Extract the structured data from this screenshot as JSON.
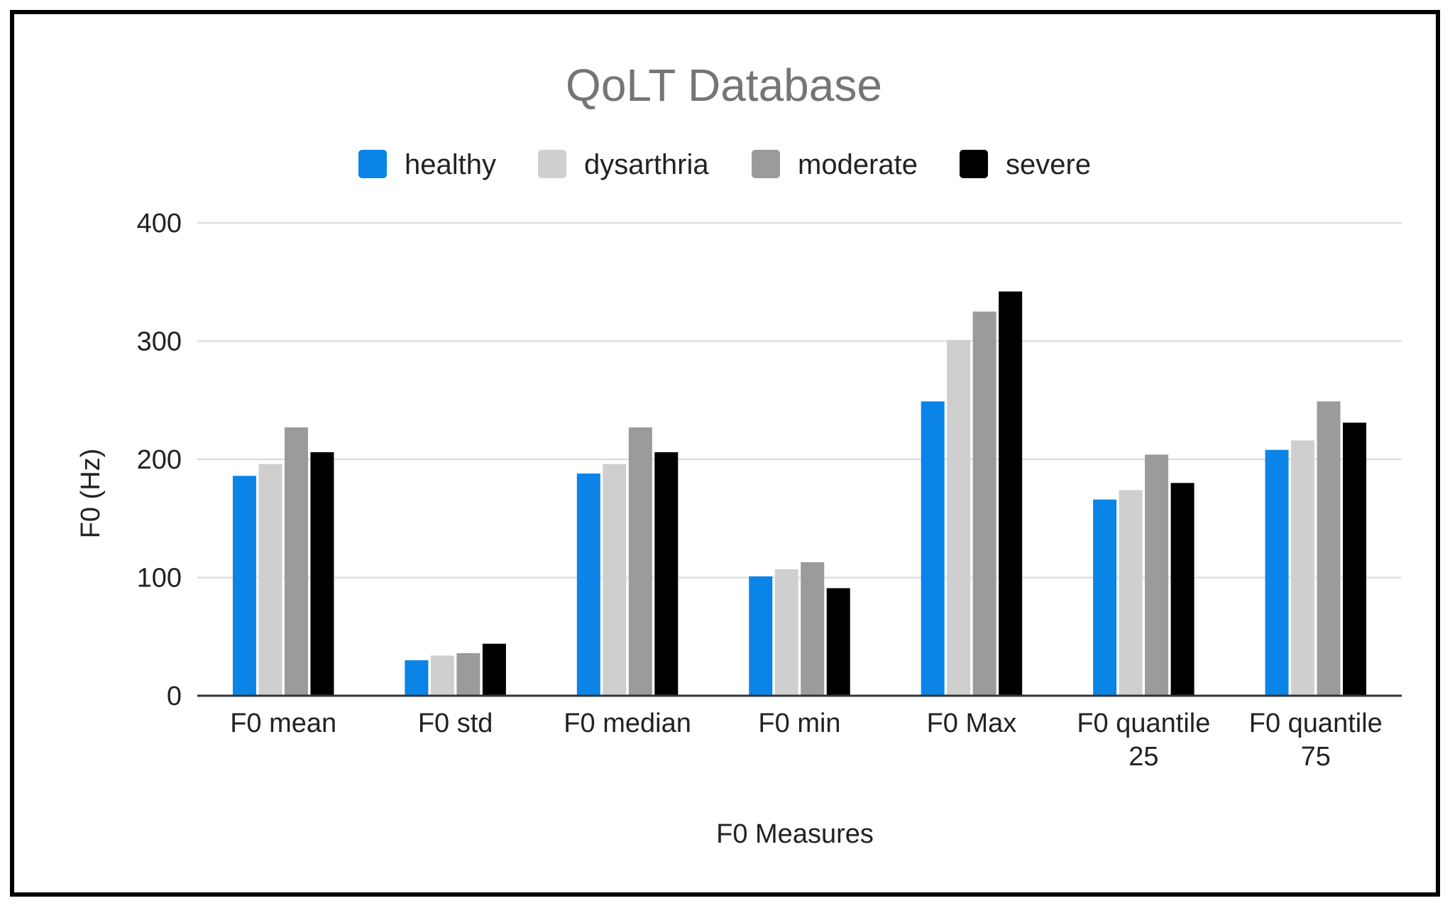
{
  "chart_data": {
    "type": "bar",
    "title": "QoLT Database",
    "xlabel": "F0 Measures",
    "ylabel": "F0 (Hz)",
    "ylim": [
      0,
      400
    ],
    "yticks": [
      "0",
      "100",
      "200",
      "300",
      "400"
    ],
    "ytick_values": [
      0,
      100,
      200,
      300,
      400
    ],
    "grid": true,
    "legend_position": "top-center",
    "categories": [
      [
        "F0 mean"
      ],
      [
        "F0 std"
      ],
      [
        "F0 median"
      ],
      [
        "F0 min"
      ],
      [
        "F0 Max"
      ],
      [
        "F0 quantile",
        "25"
      ],
      [
        "F0 quantile",
        "75"
      ]
    ],
    "series": [
      {
        "name": "healthy",
        "color": "#0b84e8",
        "values": [
          186,
          30,
          188,
          101,
          249,
          166,
          208
        ]
      },
      {
        "name": "dysarthria",
        "color": "#cfcfcf",
        "values": [
          196,
          34,
          196,
          107,
          301,
          174,
          216
        ]
      },
      {
        "name": "moderate",
        "color": "#9b9b9b",
        "values": [
          227,
          36,
          227,
          113,
          325,
          204,
          249
        ]
      },
      {
        "name": "severe",
        "color": "#000000",
        "values": [
          206,
          44,
          206,
          91,
          342,
          180,
          231
        ]
      }
    ],
    "gridline_color": "#d9d9d9",
    "baseline_color": "#333333"
  }
}
